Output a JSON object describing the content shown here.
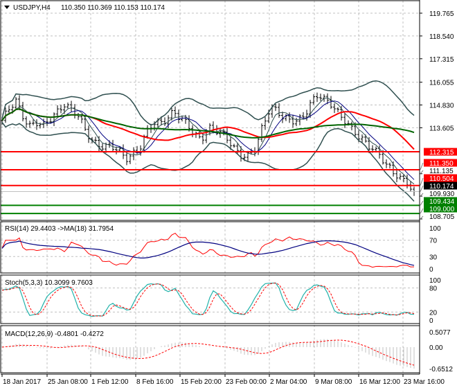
{
  "header": {
    "symbol_label": "USDJPY,H4",
    "ohlc": "110.350 110.369 110.153 110.174"
  },
  "chart_data": {
    "type": "ohlc",
    "symbol": "USDJPY",
    "timeframe": "H4",
    "price_axis": {
      "ylim": [
        108.705,
        119.765
      ],
      "ticks": [
        "119.765",
        "118.540",
        "117.315",
        "116.055",
        "114.830",
        "113.605",
        "111.135",
        "109.930",
        "108.705"
      ]
    },
    "x_tick_labels": [
      "18 Jan 2017",
      "25 Jan 08:00",
      "1 Feb 12:00",
      "8 Feb 16:00",
      "15 Feb 20:00",
      "23 Feb 00:00",
      "2 Mar 04:00",
      "9 Mar 08:00",
      "16 Mar 12:00",
      "23 Mar 16:00"
    ],
    "close_series": [
      114.0,
      114.5,
      115.0,
      114.3,
      113.8,
      113.9,
      113.6,
      114.0,
      114.5,
      115.0,
      114.6,
      114.2,
      113.5,
      113.0,
      112.8,
      112.6,
      112.5,
      112.3,
      112.0,
      112.3,
      112.5,
      113.2,
      113.8,
      113.9,
      114.2,
      114.5,
      114.0,
      113.7,
      113.3,
      113.1,
      113.6,
      113.4,
      113.2,
      113.0,
      112.5,
      112.1,
      112.0,
      112.5,
      113.8,
      114.8,
      114.6,
      114.0,
      113.9,
      114.0,
      114.4,
      115.0,
      115.3,
      115.0,
      114.9,
      114.5,
      114.0,
      113.4,
      113.0,
      112.8,
      112.6,
      112.2,
      111.5,
      111.1,
      110.9,
      110.8,
      110.174
    ],
    "levels": [
      {
        "price": "112.315",
        "color": "#ff0000"
      },
      {
        "price": "111.350",
        "color": "#ff0000"
      },
      {
        "price": "110.504",
        "color": "#ff0000"
      },
      {
        "price": "109.434",
        "color": "#008000"
      },
      {
        "price": "109.000",
        "color": "#008000"
      }
    ],
    "current_price": "110.174",
    "moving_averages": [
      {
        "color": "#ff0000"
      },
      {
        "color": "#006400"
      }
    ],
    "bollinger_color": "#2f4f4f",
    "rsi": {
      "label": "RSI(14) 29.4403  ->MA(18) 31.7954",
      "ticks": [
        "100",
        "70",
        "30",
        "0"
      ],
      "line_color": "#ff0000",
      "ma_color": "#000080"
    },
    "stoch": {
      "label": "Stoch(5,3,3) 10.3099 9.7603",
      "ticks": [
        "100",
        "80",
        "20",
        "0"
      ],
      "main_color": "#20b2aa",
      "signal_color": "#ff0000"
    },
    "macd": {
      "label": "MACD(12,26,9) -0.4801 -0.4272",
      "ticks": [
        "0.5077",
        "0.00",
        "-0.6512"
      ],
      "hist_color": "#c0c0c0",
      "signal_color": "#ff0000"
    }
  }
}
